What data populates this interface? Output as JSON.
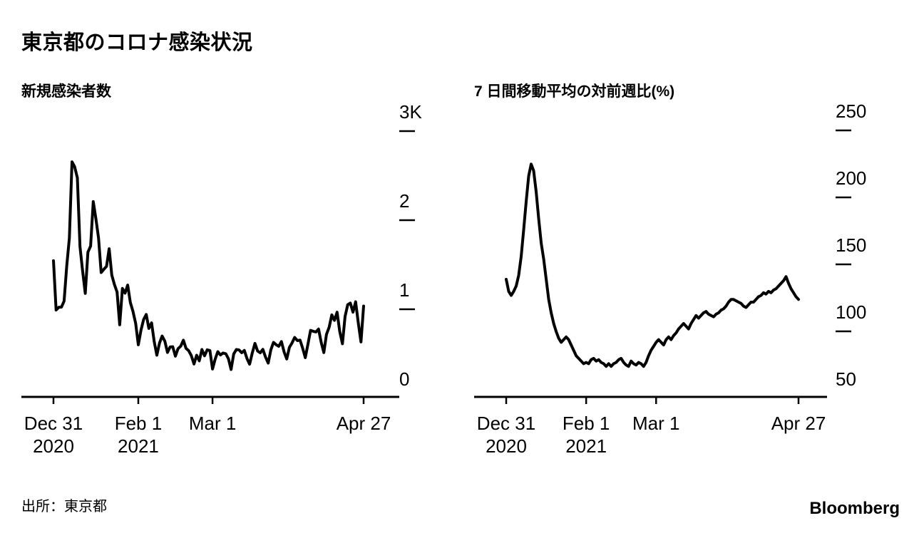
{
  "page": {
    "title": "東京都のコロナ感染状況",
    "source": "出所：東京都",
    "brand": "Bloomberg",
    "line_color": "#000000",
    "text_color": "#000000",
    "background_color": "#ffffff"
  },
  "chart_data": [
    {
      "type": "line",
      "title": "新規感染者数",
      "x_start": "Dec 31 2020",
      "x_end": "Apr 27 2021",
      "x_unit": "day",
      "ylim": [
        0,
        3000
      ],
      "y_ticks": [
        {
          "value": 3000,
          "label": "3K"
        },
        {
          "value": 2000,
          "label": "2"
        },
        {
          "value": 1000,
          "label": "1"
        },
        {
          "value": 0,
          "label": "0"
        }
      ],
      "x_ticks": [
        {
          "index": 0,
          "lines": [
            "Dec 31",
            "2020"
          ]
        },
        {
          "index": 32,
          "lines": [
            "Feb 1",
            "2021"
          ]
        },
        {
          "index": 60,
          "lines": [
            "Mar 1"
          ]
        },
        {
          "index": 117,
          "lines": [
            "Apr 27"
          ]
        }
      ],
      "values": [
        1337,
        783,
        814,
        816,
        884,
        1278,
        1591,
        2447,
        2392,
        2268,
        1494,
        1219,
        970,
        1433,
        1502,
        2001,
        1809,
        1592,
        1204,
        1240,
        1274,
        1471,
        1175,
        1070,
        986,
        618,
        1026,
        973,
        1064,
        868,
        769,
        633,
        393,
        556,
        676,
        734,
        577,
        639,
        429,
        276,
        412,
        491,
        434,
        307,
        369,
        371,
        266,
        350,
        378,
        445,
        353,
        327,
        272,
        178,
        275,
        213,
        340,
        270,
        337,
        329,
        121,
        232,
        316,
        279,
        301,
        293,
        237,
        116,
        290,
        340,
        335,
        304,
        330,
        239,
        175,
        300,
        409,
        323,
        303,
        342,
        256,
        187,
        337,
        420,
        394,
        376,
        430,
        313,
        234,
        364,
        414,
        475,
        440,
        446,
        355,
        249,
        399,
        555,
        545,
        537,
        570,
        421,
        306,
        510,
        591,
        729,
        667,
        759,
        543,
        405,
        711,
        843,
        861,
        759,
        876,
        635,
        425,
        828
      ]
    },
    {
      "type": "line",
      "title": "7 日間移動平均の対前週比(%)",
      "x_start": "Dec 31 2020",
      "x_end": "Apr 27 2021",
      "x_unit": "day",
      "ylim": [
        50,
        250
      ],
      "y_ticks": [
        {
          "value": 250,
          "label": "250"
        },
        {
          "value": 200,
          "label": "200"
        },
        {
          "value": 150,
          "label": "150"
        },
        {
          "value": 100,
          "label": "100"
        },
        {
          "value": 50,
          "label": "50"
        }
      ],
      "x_ticks": [
        {
          "index": 0,
          "lines": [
            "Dec 31",
            "2020"
          ]
        },
        {
          "index": 32,
          "lines": [
            "Feb 1",
            "2021"
          ]
        },
        {
          "index": 60,
          "lines": [
            "Mar 1"
          ]
        },
        {
          "index": 117,
          "lines": [
            "Apr 27"
          ]
        }
      ],
      "values": [
        125,
        116,
        113,
        116,
        120,
        128,
        142,
        162,
        183,
        202,
        211,
        206,
        190,
        170,
        152,
        140,
        125,
        110,
        100,
        92,
        86,
        81,
        78,
        80,
        82,
        80,
        76,
        72,
        68,
        66,
        64,
        62,
        63,
        62,
        65,
        66,
        64,
        65,
        63,
        62,
        60,
        62,
        60,
        62,
        63,
        65,
        66,
        63,
        61,
        60,
        64,
        62,
        61,
        63,
        62,
        60,
        63,
        68,
        72,
        75,
        78,
        80,
        78,
        76,
        80,
        82,
        80,
        83,
        85,
        88,
        90,
        92,
        90,
        88,
        92,
        95,
        98,
        96,
        98,
        100,
        101,
        99,
        98,
        97,
        99,
        100,
        102,
        103,
        105,
        108,
        110,
        110,
        109,
        108,
        107,
        105,
        104,
        106,
        108,
        108,
        110,
        112,
        113,
        115,
        114,
        116,
        115,
        117,
        118,
        120,
        122,
        124,
        127,
        122,
        118,
        115,
        112,
        110
      ]
    }
  ]
}
